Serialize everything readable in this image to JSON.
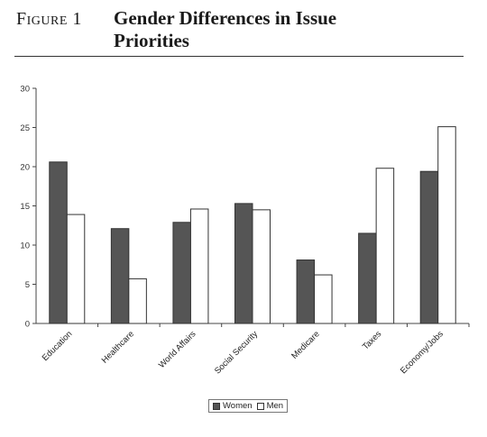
{
  "figure": {
    "label": "Figure 1",
    "title": "Gender Differences in Issue Priorities"
  },
  "colors": {
    "women": "#555555",
    "men": "#ffffff",
    "stroke": "#333333"
  },
  "chart_data": {
    "type": "bar",
    "title": "",
    "xlabel": "",
    "ylabel": "",
    "ylim": [
      0,
      30
    ],
    "yticks": [
      0,
      5,
      10,
      15,
      20,
      25,
      30
    ],
    "categories": [
      "Education",
      "Healthcare",
      "World Affairs",
      "Social Security",
      "Medicare",
      "Taxes",
      "Economy/Jobs"
    ],
    "series": [
      {
        "name": "Women",
        "values": [
          20.6,
          12.1,
          12.9,
          15.3,
          8.1,
          11.5,
          19.4
        ]
      },
      {
        "name": "Men",
        "values": [
          13.9,
          5.7,
          14.6,
          14.5,
          6.2,
          19.8,
          25.1
        ]
      }
    ],
    "grid": false,
    "legend": "bottom-center"
  }
}
